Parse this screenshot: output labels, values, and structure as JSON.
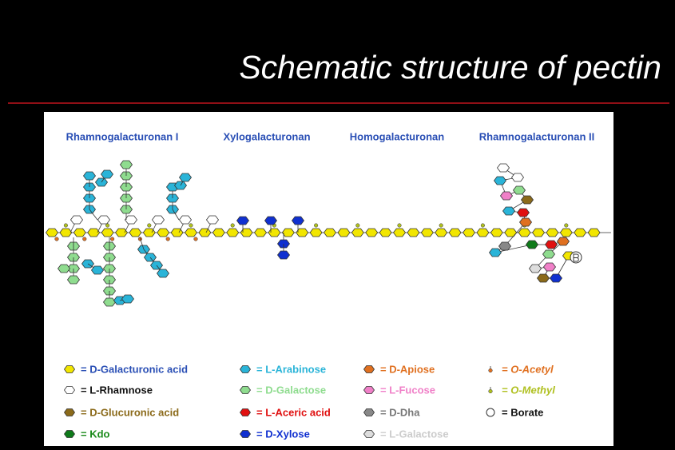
{
  "title": "Schematic structure of pectin",
  "regions": [
    "Rhamnogalacturonan I",
    "Xylogalacturonan",
    "Homogalacturonan",
    "Rhamnogalacturonan II"
  ],
  "legend": [
    {
      "label": "= D-Galacturonic acid",
      "color": "#2a4fb5",
      "fill": "#f2e600"
    },
    {
      "label": "= L-Rhamnose",
      "color": "#111111",
      "fill": "#ffffff"
    },
    {
      "label": "= D-Glucuronic acid",
      "color": "#8b6a1a",
      "fill": "#8b6a1a"
    },
    {
      "label": "= Kdo",
      "color": "#1a8a1a",
      "fill": "#0f7a1a"
    },
    {
      "label": "= L-Arabinose",
      "color": "#2ab4d8",
      "fill": "#2ab4d8"
    },
    {
      "label": "= D-Galactose",
      "color": "#8fdc8f",
      "fill": "#8fdc8f"
    },
    {
      "label": "= L-Aceric acid",
      "color": "#e01010",
      "fill": "#e01010"
    },
    {
      "label": "= D-Xylose",
      "color": "#1030d0",
      "fill": "#1030d0"
    },
    {
      "label": "= D-Apiose",
      "color": "#e07020",
      "fill": "#e07020"
    },
    {
      "label": "= L-Fucose",
      "color": "#f080c8",
      "fill": "#f080c8"
    },
    {
      "label": "= D-Dha",
      "color": "#777777",
      "fill": "#888888"
    },
    {
      "label": "= L-Galactose",
      "color": "#cccccc",
      "fill": "#dddddd"
    },
    {
      "label": "= O-Acetyl",
      "color": "#e07020",
      "fill": "#e07020"
    },
    {
      "label": "= O-Methyl",
      "color": "#b0c020",
      "fill": "#b0c020"
    },
    {
      "label": "= Borate",
      "color": "#111111",
      "fill": "#ffffff"
    }
  ]
}
